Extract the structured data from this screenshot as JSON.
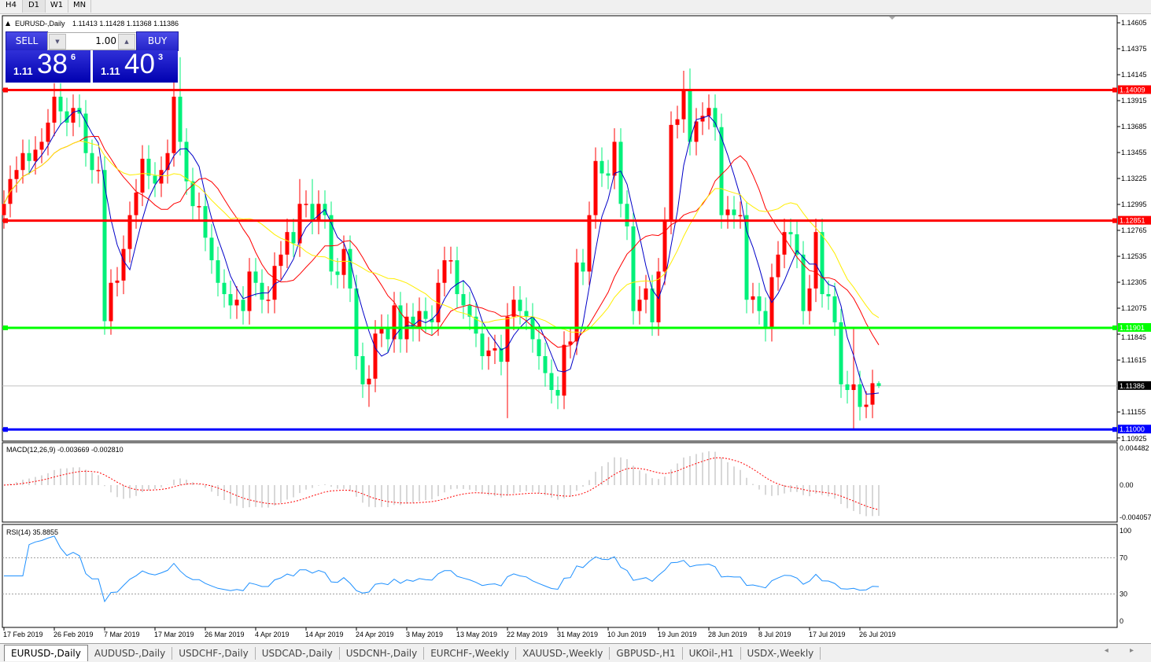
{
  "timeframes": [
    "H4",
    "D1",
    "W1",
    "MN"
  ],
  "active_timeframe": "D1",
  "chart_header": {
    "symbol": "EURUSD-,Daily",
    "ohlc_text": "1.11413 1.11428 1.11368 1.11386"
  },
  "trade_panel": {
    "sell_label": "SELL",
    "buy_label": "BUY",
    "lot_value": "1.00",
    "sell_price": {
      "prefix": "1.11",
      "big": "38",
      "sup": "6"
    },
    "buy_price": {
      "prefix": "1.11",
      "big": "40",
      "sup": "3"
    }
  },
  "chart_data": {
    "type": "candlestick",
    "bull_color": "#ff0000",
    "bear_color": "#00f07a",
    "first_open": 1.129,
    "close": [
      1.13,
      1.1322,
      1.133,
      1.1345,
      1.1338,
      1.1348,
      1.1355,
      1.1372,
      1.1395,
      1.1382,
      1.1372,
      1.1385,
      1.138,
      1.1345,
      1.133,
      1.133,
      1.1196,
      1.123,
      1.1232,
      1.126,
      1.129,
      1.131,
      1.134,
      1.1325,
      1.1318,
      1.133,
      1.1345,
      1.1395,
      1.1355,
      1.132,
      1.1298,
      1.1298,
      1.127,
      1.125,
      1.123,
      1.122,
      1.121,
      1.1215,
      1.1205,
      1.124,
      1.123,
      1.1215,
      1.1215,
      1.1245,
      1.1255,
      1.1275,
      1.1265,
      1.13,
      1.13,
      1.1285,
      1.13,
      1.129,
      1.124,
      1.1237,
      1.126,
      1.1225,
      1.1165,
      1.114,
      1.1145,
      1.1185,
      1.119,
      1.118,
      1.121,
      1.118,
      1.12,
      1.119,
      1.1205,
      1.1198,
      1.1195,
      1.123,
      1.125,
      1.125,
      1.122,
      1.121,
      1.12,
      1.1185,
      1.1165,
      1.117,
      1.1172,
      1.116,
      1.12,
      1.1215,
      1.1205,
      1.12,
      1.118,
      1.1165,
      1.115,
      1.1135,
      1.113,
      1.1175,
      1.1178,
      1.1248,
      1.124,
      1.129,
      1.1338,
      1.1327,
      1.1325,
      1.1355,
      1.13,
      1.128,
      1.1205,
      1.1215,
      1.1225,
      1.1195,
      1.124,
      1.1285,
      1.137,
      1.1375,
      1.14,
      1.1355,
      1.1373,
      1.1378,
      1.1385,
      1.1368,
      1.129,
      1.1295,
      1.129,
      1.129,
      1.1215,
      1.1218,
      1.1205,
      1.119,
      1.1235,
      1.1255,
      1.1275,
      1.1273,
      1.1255,
      1.1205,
      1.1225,
      1.1275,
      1.122,
      1.1218,
      1.1195,
      1.114,
      1.1135,
      1.114,
      1.112,
      1.1122,
      1.1141,
      1.11386
    ],
    "high": [
      1.1312,
      1.1334,
      1.1342,
      1.1357,
      1.1357,
      1.136,
      1.1367,
      1.1384,
      1.1407,
      1.1407,
      1.1394,
      1.1397,
      1.1397,
      1.1392,
      1.1357,
      1.1342,
      1.1342,
      1.1242,
      1.1244,
      1.1272,
      1.1302,
      1.1322,
      1.1352,
      1.1352,
      1.1337,
      1.1342,
      1.1357,
      1.1435,
      1.143,
      1.1367,
      1.1332,
      1.131,
      1.131,
      1.1282,
      1.1262,
      1.1242,
      1.1232,
      1.1227,
      1.1227,
      1.1252,
      1.1252,
      1.1242,
      1.1227,
      1.1257,
      1.1267,
      1.1287,
      1.1287,
      1.1322,
      1.1312,
      1.1322,
      1.1312,
      1.1312,
      1.1302,
      1.1252,
      1.1272,
      1.1272,
      1.1237,
      1.1177,
      1.1157,
      1.1197,
      1.1202,
      1.1202,
      1.1222,
      1.1222,
      1.1212,
      1.1212,
      1.1217,
      1.1217,
      1.121,
      1.1242,
      1.1262,
      1.1262,
      1.1262,
      1.1232,
      1.1222,
      1.1212,
      1.1197,
      1.1182,
      1.1184,
      1.1184,
      1.1212,
      1.1227,
      1.1227,
      1.1217,
      1.1212,
      1.1192,
      1.1177,
      1.1162,
      1.1147,
      1.1187,
      1.119,
      1.126,
      1.126,
      1.1302,
      1.135,
      1.135,
      1.1339,
      1.1367,
      1.1367,
      1.1312,
      1.1292,
      1.1227,
      1.1237,
      1.1237,
      1.1252,
      1.1297,
      1.1382,
      1.1387,
      1.1418,
      1.142,
      1.1385,
      1.139,
      1.1397,
      1.1397,
      1.138,
      1.1307,
      1.1307,
      1.1302,
      1.1302,
      1.123,
      1.123,
      1.1217,
      1.1247,
      1.1267,
      1.1287,
      1.1287,
      1.1285,
      1.1267,
      1.1237,
      1.1287,
      1.1287,
      1.1232,
      1.123,
      1.1207,
      1.1152,
      1.119,
      1.1152,
      1.1134,
      1.1153,
      1.11428
    ],
    "low": [
      1.1278,
      1.1288,
      1.131,
      1.1318,
      1.1326,
      1.1326,
      1.1336,
      1.1343,
      1.136,
      1.137,
      1.136,
      1.136,
      1.1368,
      1.1333,
      1.1318,
      1.1318,
      1.1184,
      1.1184,
      1.1218,
      1.122,
      1.1248,
      1.1278,
      1.1298,
      1.1313,
      1.1306,
      1.1306,
      1.1318,
      1.1333,
      1.1343,
      1.1308,
      1.1286,
      1.1286,
      1.1258,
      1.1238,
      1.1218,
      1.1208,
      1.1198,
      1.1198,
      1.1193,
      1.1193,
      1.1218,
      1.1203,
      1.1203,
      1.1203,
      1.1233,
      1.1243,
      1.1253,
      1.1253,
      1.1288,
      1.1273,
      1.1273,
      1.1278,
      1.1228,
      1.1225,
      1.1225,
      1.1213,
      1.1153,
      1.1128,
      1.112,
      1.1133,
      1.1173,
      1.1168,
      1.1168,
      1.1168,
      1.1168,
      1.1178,
      1.1178,
      1.1186,
      1.1183,
      1.1183,
      1.1218,
      1.1238,
      1.1208,
      1.1198,
      1.1188,
      1.1173,
      1.1153,
      1.1153,
      1.1158,
      1.1148,
      1.111,
      1.1188,
      1.1193,
      1.1188,
      1.1168,
      1.1153,
      1.1138,
      1.1123,
      1.1118,
      1.1118,
      1.1163,
      1.1166,
      1.1228,
      1.1228,
      1.1278,
      1.1315,
      1.1313,
      1.1313,
      1.1288,
      1.1268,
      1.1193,
      1.1193,
      1.1203,
      1.1183,
      1.1183,
      1.1228,
      1.1273,
      1.1358,
      1.1363,
      1.1343,
      1.1343,
      1.1361,
      1.1366,
      1.1356,
      1.1278,
      1.1278,
      1.1278,
      1.1278,
      1.1203,
      1.1203,
      1.1193,
      1.1178,
      1.1178,
      1.1223,
      1.1243,
      1.1261,
      1.1243,
      1.1193,
      1.1193,
      1.1213,
      1.1208,
      1.1206,
      1.1183,
      1.1128,
      1.1123,
      1.11,
      1.1108,
      1.111,
      1.111,
      1.11368
    ],
    "ma_colors": [
      "#0000c8",
      "#ff0000",
      "#ffee00"
    ],
    "price_ticks": [
      "1.14605",
      "1.14375",
      "1.14145",
      "1.13915",
      "1.13685",
      "1.13455",
      "1.13225",
      "1.12995",
      "1.12765",
      "1.12535",
      "1.12305",
      "1.12075",
      "1.11845",
      "1.11615",
      "1.11155",
      "1.10925"
    ],
    "date_labels": [
      "17 Feb 2019",
      "26 Feb 2019",
      "7 Mar 2019",
      "17 Mar 2019",
      "26 Mar 2019",
      "4 Apr 2019",
      "14 Apr 2019",
      "24 Apr 2019",
      "3 May 2019",
      "13 May 2019",
      "22 May 2019",
      "31 May 2019",
      "10 Jun 2019",
      "19 Jun 2019",
      "28 Jun 2019",
      "8 Jul 2019",
      "17 Jul 2019",
      "26 Jul 2019"
    ],
    "horizontal_lines": [
      {
        "price": 1.14009,
        "label": "1.14009",
        "color": "#ff0000"
      },
      {
        "price": 1.12851,
        "label": "1.12851",
        "color": "#ff0000"
      },
      {
        "price": 1.11901,
        "label": "1.11901",
        "color": "#00ff00"
      },
      {
        "price": 1.11,
        "label": "1.11000",
        "color": "#0000ff"
      }
    ],
    "current_price": {
      "price": 1.11386,
      "label": "1.11386"
    },
    "macd": {
      "title": "MACD(12,26,9) -0.003669 -0.002810",
      "ticks": [
        "0.004482",
        "0.00",
        "-0.004057"
      ],
      "range": [
        -0.004057,
        0.004482
      ]
    },
    "rsi": {
      "title": "RSI(14) 35.8855",
      "ticks": [
        "100",
        "70",
        "30",
        "0"
      ],
      "levels": [
        70,
        30
      ],
      "color": "#1e90ff"
    }
  },
  "symbol_tabs": [
    "EURUSD-,Daily",
    "AUDUSD-,Daily",
    "USDCHF-,Daily",
    "USDCAD-,Daily",
    "USDCNH-,Daily",
    "EURCHF-,Weekly",
    "XAUUSD-,Weekly",
    "GBPUSD-,H1",
    "UKOil-,H1",
    "USDX-,Weekly"
  ],
  "active_tab": "EURUSD-,Daily",
  "tab_scroll_arrows": "◂ ▸"
}
